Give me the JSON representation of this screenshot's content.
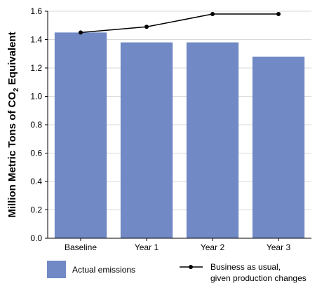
{
  "chart_data": {
    "type": "bar",
    "categories": [
      "Baseline",
      "Year 1",
      "Year 2",
      "Year 3"
    ],
    "series": [
      {
        "name": "Actual emissions",
        "type": "bar",
        "values": [
          1.45,
          1.38,
          1.38,
          1.28
        ],
        "color": "#7189c5"
      },
      {
        "name": "Business as usual, given production changes",
        "type": "line",
        "values": [
          1.45,
          1.49,
          1.58,
          1.58
        ],
        "color": "#000000"
      }
    ],
    "ylabel": {
      "prefix": "Million Metric Tons of CO",
      "subscript": "2",
      "suffix": " Equivalent"
    },
    "yticks": [
      "0.0",
      "0.2",
      "0.4",
      "0.6",
      "0.8",
      "1.0",
      "1.2",
      "1.4",
      "1.6"
    ],
    "ylim": [
      0,
      1.6
    ],
    "grid": true,
    "legend": {
      "position": "bottom",
      "bar_label": "Actual emissions",
      "line_label_lines": [
        "Business as usual,",
        "given production changes"
      ]
    }
  }
}
